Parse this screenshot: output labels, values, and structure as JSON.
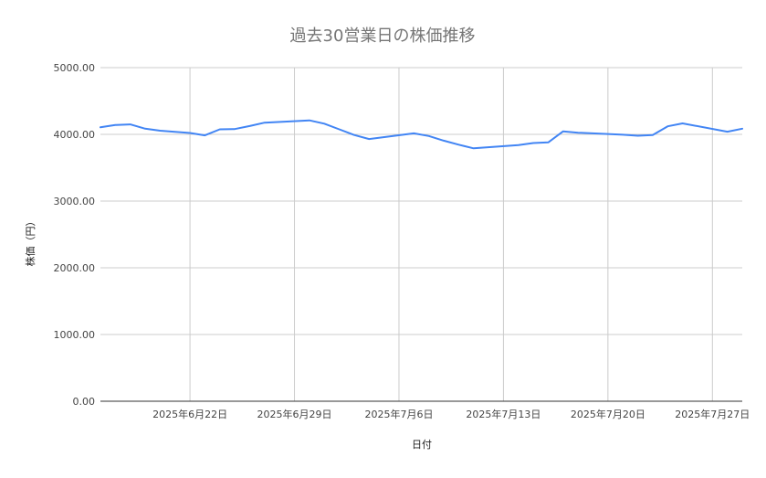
{
  "chart_data": {
    "type": "line",
    "title": "過去30営業日の株価推移",
    "xlabel": "日付",
    "ylabel": "株価（円）",
    "ylim": [
      0,
      5000
    ],
    "y_ticks": [
      "5000.00",
      "4000.00",
      "3000.00",
      "2000.00",
      "1000.00",
      "0.00"
    ],
    "y_tick_values": [
      5000,
      4000,
      3000,
      2000,
      1000,
      0
    ],
    "x_range": [
      "2025-06-16",
      "2025-07-28"
    ],
    "x_ticks": [
      {
        "date": "2025-06-22",
        "label": "2025年6月22日"
      },
      {
        "date": "2025-06-29",
        "label": "2025年6月29日"
      },
      {
        "date": "2025-07-06",
        "label": "2025年7月6日"
      },
      {
        "date": "2025-07-13",
        "label": "2025年7月13日"
      },
      {
        "date": "2025-07-20",
        "label": "2025年7月20日"
      },
      {
        "date": "2025-07-27",
        "label": "2025年7月27日"
      }
    ],
    "grid": true,
    "legend": "none",
    "series": [
      {
        "color": "#4285f4",
        "points": [
          {
            "x": "2025-06-16",
            "y": 4105
          },
          {
            "x": "2025-06-17",
            "y": 4140
          },
          {
            "x": "2025-06-18",
            "y": 4150
          },
          {
            "x": "2025-06-19",
            "y": 4085
          },
          {
            "x": "2025-06-20",
            "y": 4055
          },
          {
            "x": "2025-06-22",
            "y": 4020
          },
          {
            "x": "2025-06-23",
            "y": 3985
          },
          {
            "x": "2025-06-24",
            "y": 4075
          },
          {
            "x": "2025-06-25",
            "y": 4080
          },
          {
            "x": "2025-06-26",
            "y": 4125
          },
          {
            "x": "2025-06-27",
            "y": 4175
          },
          {
            "x": "2025-06-30",
            "y": 4210
          },
          {
            "x": "2025-07-01",
            "y": 4160
          },
          {
            "x": "2025-07-02",
            "y": 4075
          },
          {
            "x": "2025-07-03",
            "y": 3990
          },
          {
            "x": "2025-07-04",
            "y": 3930
          },
          {
            "x": "2025-07-07",
            "y": 4015
          },
          {
            "x": "2025-07-08",
            "y": 3975
          },
          {
            "x": "2025-07-09",
            "y": 3905
          },
          {
            "x": "2025-07-10",
            "y": 3845
          },
          {
            "x": "2025-07-11",
            "y": 3790
          },
          {
            "x": "2025-07-14",
            "y": 3840
          },
          {
            "x": "2025-07-15",
            "y": 3870
          },
          {
            "x": "2025-07-16",
            "y": 3880
          },
          {
            "x": "2025-07-17",
            "y": 4045
          },
          {
            "x": "2025-07-18",
            "y": 4025
          },
          {
            "x": "2025-07-21",
            "y": 3995
          },
          {
            "x": "2025-07-22",
            "y": 3980
          },
          {
            "x": "2025-07-23",
            "y": 3990
          },
          {
            "x": "2025-07-24",
            "y": 4120
          },
          {
            "x": "2025-07-25",
            "y": 4165
          },
          {
            "x": "2025-07-28",
            "y": 4040
          },
          {
            "x": "2025-07-29",
            "y": 4085
          }
        ]
      }
    ]
  }
}
